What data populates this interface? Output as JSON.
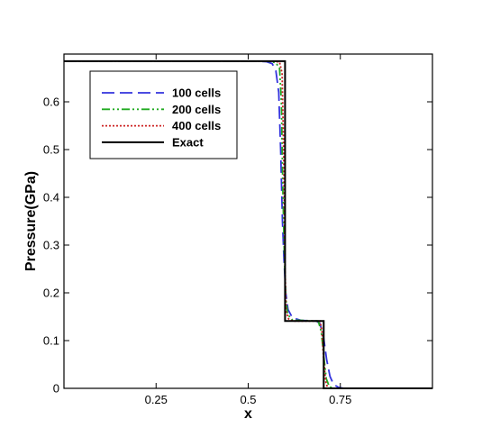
{
  "chart_data": {
    "type": "line",
    "title": "",
    "xlabel": "x",
    "ylabel": "Pressure(GPa)",
    "xlim": [
      0,
      1
    ],
    "ylim": [
      0,
      0.7
    ],
    "grid": false,
    "legend_position": "top-left",
    "x_ticks": [
      {
        "value": 0.25,
        "label": "0.25"
      },
      {
        "value": 0.5,
        "label": "0.5"
      },
      {
        "value": 0.75,
        "label": "0.75"
      }
    ],
    "y_ticks": [
      {
        "value": 0,
        "label": "0"
      },
      {
        "value": 0.1,
        "label": "0.1"
      },
      {
        "value": 0.2,
        "label": "0.2"
      },
      {
        "value": 0.3,
        "label": "0.3"
      },
      {
        "value": 0.4,
        "label": "0.4"
      },
      {
        "value": 0.5,
        "label": "0.5"
      },
      {
        "value": 0.6,
        "label": "0.6"
      }
    ],
    "series": [
      {
        "name": "100 cells",
        "color": "#3333dd",
        "dash": "14,6",
        "points": [
          [
            0,
            0.685
          ],
          [
            0.52,
            0.685
          ],
          [
            0.55,
            0.684
          ],
          [
            0.565,
            0.68
          ],
          [
            0.575,
            0.665
          ],
          [
            0.583,
            0.62
          ],
          [
            0.588,
            0.5
          ],
          [
            0.593,
            0.35
          ],
          [
            0.597,
            0.27
          ],
          [
            0.602,
            0.2
          ],
          [
            0.608,
            0.165
          ],
          [
            0.62,
            0.148
          ],
          [
            0.645,
            0.142
          ],
          [
            0.685,
            0.141
          ],
          [
            0.695,
            0.135
          ],
          [
            0.705,
            0.105
          ],
          [
            0.713,
            0.06
          ],
          [
            0.722,
            0.025
          ],
          [
            0.732,
            0.008
          ],
          [
            0.745,
            0.002
          ],
          [
            0.76,
            0
          ],
          [
            1.0,
            0
          ]
        ]
      },
      {
        "name": "200 cells",
        "color": "#22aa22",
        "dash": "9,3,2,3,2,3",
        "points": [
          [
            0,
            0.685
          ],
          [
            0.55,
            0.685
          ],
          [
            0.575,
            0.682
          ],
          [
            0.585,
            0.67
          ],
          [
            0.59,
            0.6
          ],
          [
            0.594,
            0.42
          ],
          [
            0.598,
            0.28
          ],
          [
            0.602,
            0.19
          ],
          [
            0.607,
            0.155
          ],
          [
            0.62,
            0.143
          ],
          [
            0.69,
            0.141
          ],
          [
            0.698,
            0.12
          ],
          [
            0.706,
            0.06
          ],
          [
            0.712,
            0.02
          ],
          [
            0.72,
            0.004
          ],
          [
            0.73,
            0
          ],
          [
            1.0,
            0
          ]
        ]
      },
      {
        "name": "400 cells",
        "color": "#cc2222",
        "dash": "2,2",
        "points": [
          [
            0,
            0.685
          ],
          [
            0.57,
            0.685
          ],
          [
            0.585,
            0.683
          ],
          [
            0.592,
            0.66
          ],
          [
            0.596,
            0.5
          ],
          [
            0.6,
            0.25
          ],
          [
            0.603,
            0.16
          ],
          [
            0.61,
            0.145
          ],
          [
            0.62,
            0.141
          ],
          [
            0.695,
            0.141
          ],
          [
            0.7,
            0.12
          ],
          [
            0.705,
            0.06
          ],
          [
            0.71,
            0.015
          ],
          [
            0.716,
            0
          ],
          [
            1.0,
            0
          ]
        ]
      },
      {
        "name": "Exact",
        "color": "#000000",
        "dash": "",
        "points": [
          [
            0,
            0.685
          ],
          [
            0.6,
            0.685
          ],
          [
            0.6,
            0.141
          ],
          [
            0.705,
            0.141
          ],
          [
            0.705,
            0
          ],
          [
            1.0,
            0
          ]
        ]
      }
    ]
  }
}
